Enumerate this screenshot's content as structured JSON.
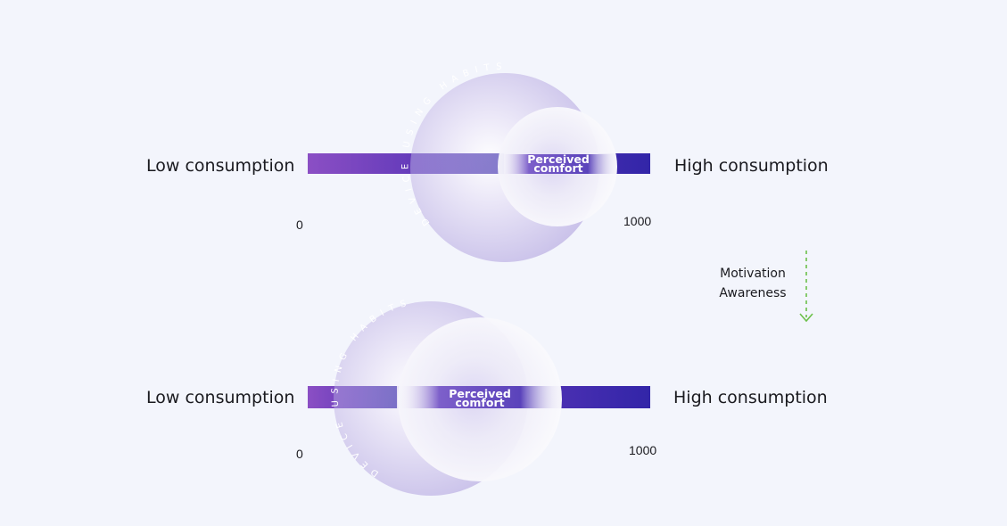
{
  "diagrams": [
    {
      "left_label": "Low consumption",
      "right_label": "High consumption",
      "min_label": "0",
      "max_label": "1000",
      "habits_label": "DEVICE USING HABITS",
      "comfort_line1": "Perceived",
      "comfort_line2": "comfort"
    },
    {
      "left_label": "Low consumption",
      "right_label": "High consumption",
      "min_label": "0",
      "max_label": "1000",
      "habits_label": "DEVICE USING HABITS",
      "comfort_line1": "Perceived",
      "comfort_line2": "comfort"
    }
  ],
  "transition": {
    "line1": "Motivation",
    "line2": "Awareness"
  },
  "colors": {
    "bar_start": "#8b4fc4",
    "bar_end": "#3225a8",
    "habits_circle": "#cfc8ec",
    "comfort_circle": "#f7f7fb",
    "arrow": "#6cc04a"
  }
}
